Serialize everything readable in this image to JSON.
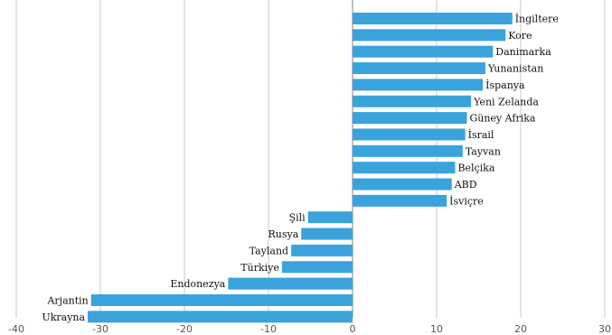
{
  "chart_data": {
    "type": "bar",
    "orientation": "horizontal",
    "categories": [
      "İngiltere",
      "Kore",
      "Danimarka",
      "Yunanistan",
      "İspanya",
      "Yeni Zelanda",
      "Güney Afrika",
      "İsrail",
      "Tayvan",
      "Belçika",
      "ABD",
      "İsviçre",
      "Şili",
      "Rusya",
      "Tayland",
      "Türkiye",
      "Endonezya",
      "Arjantin",
      "Ukrayna"
    ],
    "values": [
      19,
      18.2,
      16.7,
      15.8,
      15.5,
      14.1,
      13.6,
      13.4,
      13.1,
      12.2,
      11.8,
      11.2,
      -5.3,
      -6.1,
      -7.3,
      -8.4,
      -14.8,
      -31.1,
      -31.5
    ],
    "xlim": [
      -40,
      30
    ],
    "xticks": [
      "-40",
      "-30",
      "-20",
      "-10",
      "0",
      "10",
      "20",
      "30"
    ],
    "grid": true,
    "bar_color": "#3aa3db",
    "title": "",
    "xlabel": "",
    "ylabel": ""
  }
}
